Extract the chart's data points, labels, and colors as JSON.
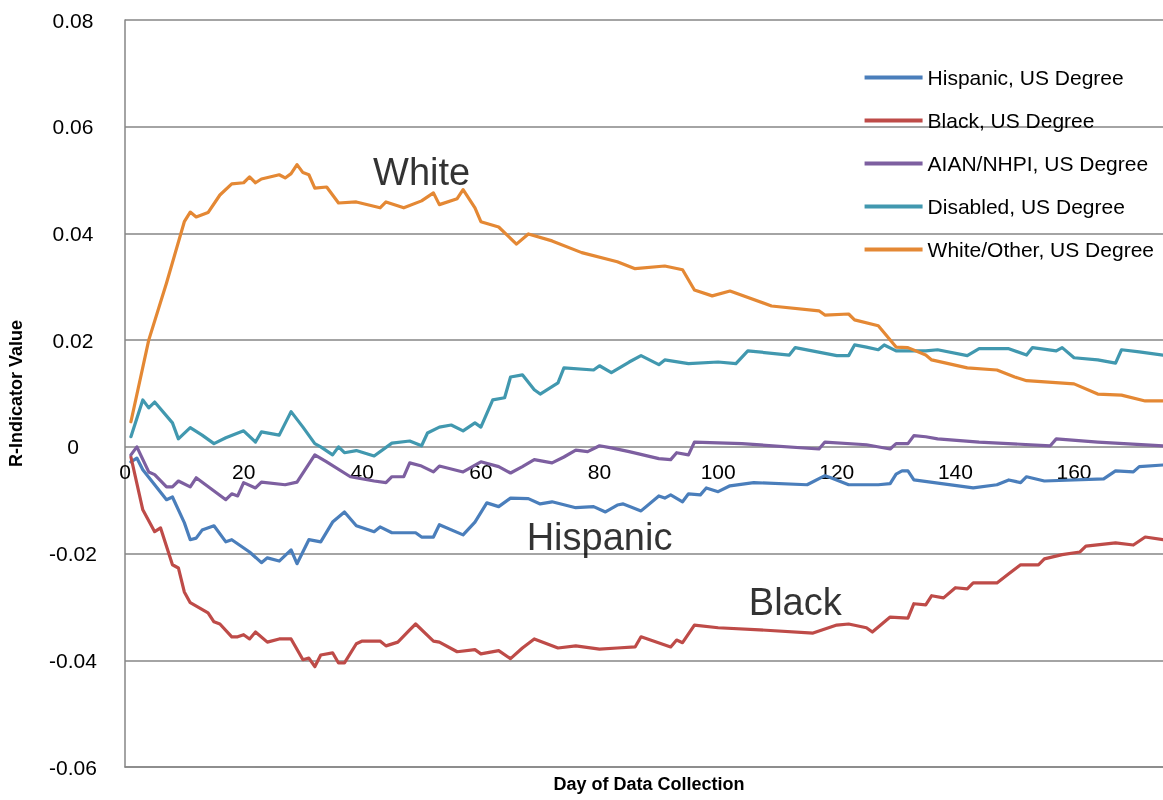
{
  "chart_data": {
    "type": "line",
    "xlabel": "Day of Data Collection",
    "ylabel": "R-Indicator Value",
    "xlim": [
      0,
      175
    ],
    "xticks": [
      0,
      20,
      40,
      60,
      80,
      100,
      120,
      140,
      160
    ],
    "ylim": [
      -0.06,
      0.08
    ],
    "yticks": [
      -0.06,
      -0.04,
      -0.02,
      0,
      0.02,
      0.04,
      0.06,
      0.08
    ],
    "grid": "y",
    "legend": "top right",
    "marker": "none",
    "line_style": "solid",
    "annotations": [
      {
        "text": "White",
        "x": 50,
        "y": 0.046
      },
      {
        "text": "Hispanic",
        "x": 80,
        "y": -0.0115
      },
      {
        "text": "Black",
        "x": 113,
        "y": -0.0345
      }
    ],
    "series": [
      {
        "name": "Hispanic, US Degree",
        "color": "#4a7ebb",
        "x": [
          1,
          2,
          3,
          7,
          8,
          10,
          11,
          12,
          13,
          15,
          17,
          18,
          21,
          23,
          24,
          26,
          28,
          29,
          31,
          33,
          35,
          37,
          39,
          42,
          43,
          45,
          49,
          50,
          52,
          53,
          57,
          59,
          61,
          63,
          65,
          68,
          70,
          72,
          76,
          79,
          81,
          83,
          84,
          87,
          90,
          91,
          92,
          94,
          95,
          97,
          98,
          100,
          102,
          106,
          115,
          118,
          119,
          122,
          127,
          129,
          130,
          131,
          132,
          133,
          143,
          147,
          149,
          151,
          152,
          155,
          165,
          167,
          170,
          171,
          175
        ],
        "values": [
          -0.0028,
          -0.0021,
          -0.0043,
          -0.0099,
          -0.0094,
          -0.0142,
          -0.0174,
          -0.0171,
          -0.0156,
          -0.0148,
          -0.0178,
          -0.0174,
          -0.0197,
          -0.0217,
          -0.0208,
          -0.0214,
          -0.0193,
          -0.0219,
          -0.0174,
          -0.0178,
          -0.0141,
          -0.0122,
          -0.0148,
          -0.0159,
          -0.015,
          -0.0161,
          -0.0161,
          -0.0169,
          -0.0169,
          -0.0146,
          -0.0165,
          -0.0141,
          -0.0105,
          -0.0112,
          -0.0096,
          -0.0097,
          -0.0107,
          -0.0103,
          -0.0114,
          -0.0112,
          -0.0122,
          -0.0109,
          -0.0107,
          -0.012,
          -0.0092,
          -0.0096,
          -0.009,
          -0.0103,
          -0.0088,
          -0.009,
          -0.0077,
          -0.0084,
          -0.0073,
          -0.0067,
          -0.0071,
          -0.0054,
          -0.0058,
          -0.0071,
          -0.0071,
          -0.0069,
          -0.0051,
          -0.0045,
          -0.0045,
          -0.0062,
          -0.0077,
          -0.0071,
          -0.0062,
          -0.0067,
          -0.0056,
          -0.0064,
          -0.006,
          -0.0045,
          -0.0047,
          -0.0037,
          -0.0034
        ]
      },
      {
        "name": "Black, US Degree",
        "color": "#be4b48",
        "x": [
          1,
          3,
          5,
          6,
          8,
          9,
          10,
          11,
          14,
          15,
          16,
          18,
          19,
          20,
          21,
          22,
          24,
          26,
          28,
          30,
          31,
          32,
          33,
          35,
          36,
          37,
          39,
          40,
          43,
          44,
          46,
          48,
          49,
          52,
          53,
          56,
          59,
          60,
          63,
          65,
          67,
          69,
          73,
          76,
          80,
          83,
          86,
          87,
          92,
          93,
          94,
          96,
          100,
          107,
          116,
          120,
          122,
          125,
          126,
          129,
          132,
          133,
          135,
          136,
          138,
          140,
          142,
          143,
          147,
          149,
          151,
          154,
          155,
          158,
          161,
          162,
          167,
          170,
          172,
          175
        ],
        "values": [
          -0.0019,
          -0.0118,
          -0.0159,
          -0.0152,
          -0.0221,
          -0.0227,
          -0.0272,
          -0.0292,
          -0.0311,
          -0.0328,
          -0.0332,
          -0.0356,
          -0.0356,
          -0.0352,
          -0.036,
          -0.0347,
          -0.0366,
          -0.036,
          -0.036,
          -0.0399,
          -0.0396,
          -0.0412,
          -0.039,
          -0.0386,
          -0.0405,
          -0.0405,
          -0.0369,
          -0.0364,
          -0.0364,
          -0.0373,
          -0.0366,
          -0.0343,
          -0.0332,
          -0.0364,
          -0.0366,
          -0.0384,
          -0.038,
          -0.0388,
          -0.0382,
          -0.0397,
          -0.0377,
          -0.036,
          -0.0377,
          -0.0373,
          -0.0379,
          -0.0377,
          -0.0375,
          -0.0356,
          -0.0375,
          -0.0362,
          -0.0367,
          -0.0334,
          -0.0339,
          -0.0343,
          -0.0349,
          -0.0334,
          -0.0332,
          -0.0339,
          -0.0347,
          -0.0319,
          -0.0321,
          -0.0294,
          -0.0296,
          -0.0279,
          -0.0283,
          -0.0264,
          -0.0266,
          -0.0255,
          -0.0255,
          -0.0238,
          -0.0221,
          -0.0221,
          -0.021,
          -0.0202,
          -0.0197,
          -0.0186,
          -0.018,
          -0.0184,
          -0.0169,
          -0.0174
        ]
      },
      {
        "name": "AIAN/NHPI, US Degree",
        "color": "#7d5fa0",
        "x": [
          1,
          2,
          4,
          5,
          7,
          8,
          9,
          11,
          12,
          17,
          18,
          19,
          20,
          22,
          23,
          27,
          29,
          32,
          34,
          38,
          42,
          44,
          45,
          47,
          48,
          50,
          52,
          53,
          57,
          60,
          63,
          65,
          67,
          69,
          72,
          74,
          76,
          78,
          80,
          82,
          85,
          90,
          92,
          93,
          95,
          96,
          104,
          117,
          118,
          125,
          129,
          130,
          132,
          133,
          135,
          137,
          144,
          156,
          157,
          164,
          175
        ],
        "values": [
          -0.0015,
          0,
          -0.0047,
          -0.0052,
          -0.0075,
          -0.0075,
          -0.0064,
          -0.0075,
          -0.0058,
          -0.0099,
          -0.0088,
          -0.0092,
          -0.0067,
          -0.0077,
          -0.0066,
          -0.0071,
          -0.0066,
          -0.0015,
          -0.0028,
          -0.0056,
          -0.0064,
          -0.0067,
          -0.0056,
          -0.0056,
          -0.003,
          -0.0036,
          -0.0047,
          -0.0036,
          -0.0047,
          -0.0028,
          -0.0037,
          -0.0049,
          -0.0037,
          -0.0024,
          -0.003,
          -0.0019,
          -0.0006,
          -0.0009,
          0.0002,
          -0.0002,
          -0.0009,
          -0.0022,
          -0.0024,
          -0.0011,
          -0.0015,
          0.0009,
          0.0006,
          -0.0004,
          0.0009,
          0.0004,
          -0.0004,
          0.0006,
          0.0006,
          0.0021,
          0.0019,
          0.0015,
          0.0009,
          0.0002,
          0.0015,
          0.0009,
          0.0002
        ]
      },
      {
        "name": "Disabled, US Degree",
        "color": "#4198af",
        "x": [
          1,
          3,
          4,
          5,
          8,
          9,
          11,
          13,
          15,
          17,
          20,
          22,
          23,
          26,
          28,
          30,
          32,
          33,
          35,
          36,
          37,
          39,
          42,
          45,
          48,
          50,
          51,
          53,
          55,
          57,
          59,
          60,
          62,
          64,
          65,
          67,
          69,
          70,
          73,
          74,
          79,
          80,
          82,
          85,
          87,
          90,
          91,
          95,
          100,
          103,
          105,
          112,
          113,
          120,
          122,
          123,
          125,
          127,
          128,
          130,
          135,
          137,
          142,
          144,
          149,
          152,
          153,
          157,
          158,
          160,
          164,
          167,
          168,
          171,
          175
        ],
        "values": [
          0.0019,
          0.0088,
          0.0073,
          0.0084,
          0.0045,
          0.0015,
          0.0036,
          0.0022,
          0.0006,
          0.0017,
          0.003,
          0.0009,
          0.0028,
          0.0022,
          0.0066,
          0.0037,
          0.0006,
          0,
          -0.0015,
          0,
          -0.0011,
          -0.0007,
          -0.0017,
          0.0007,
          0.0011,
          0.0002,
          0.0026,
          0.0037,
          0.0041,
          0.003,
          0.0045,
          0.0037,
          0.0088,
          0.0092,
          0.0131,
          0.0135,
          0.0107,
          0.0099,
          0.012,
          0.0148,
          0.0144,
          0.0152,
          0.0139,
          0.0159,
          0.0171,
          0.0154,
          0.0163,
          0.0156,
          0.0159,
          0.0156,
          0.018,
          0.0172,
          0.0186,
          0.0171,
          0.0171,
          0.0191,
          0.0187,
          0.0182,
          0.0191,
          0.018,
          0.018,
          0.0182,
          0.0171,
          0.0184,
          0.0184,
          0.0172,
          0.0186,
          0.018,
          0.0186,
          0.0167,
          0.0163,
          0.0157,
          0.0182,
          0.0178,
          0.0172
        ]
      },
      {
        "name": "White/Other, US Degree",
        "color": "#e48834",
        "x": [
          1,
          4,
          7,
          10,
          11,
          12,
          14,
          16,
          18,
          20,
          21,
          22,
          23,
          26,
          27,
          28,
          29,
          30,
          31,
          32,
          34,
          36,
          39,
          43,
          44,
          47,
          50,
          52,
          53,
          56,
          57,
          59,
          60,
          63,
          66,
          68,
          72,
          77,
          83,
          86,
          91,
          94,
          96,
          99,
          102,
          109,
          117,
          118,
          122,
          123,
          127,
          130,
          132,
          135,
          136,
          142,
          147,
          150,
          152,
          160,
          164,
          168,
          172,
          175
        ],
        "values": [
          0.0047,
          0.02,
          0.0307,
          0.0422,
          0.044,
          0.0431,
          0.0439,
          0.0472,
          0.0493,
          0.0495,
          0.0506,
          0.0495,
          0.0502,
          0.051,
          0.0504,
          0.0512,
          0.0529,
          0.0514,
          0.051,
          0.0485,
          0.0487,
          0.0457,
          0.0459,
          0.0448,
          0.0459,
          0.0448,
          0.0461,
          0.0476,
          0.0454,
          0.0465,
          0.0482,
          0.0448,
          0.0422,
          0.0412,
          0.038,
          0.0399,
          0.0386,
          0.0364,
          0.0347,
          0.0334,
          0.0339,
          0.0332,
          0.0294,
          0.0283,
          0.0292,
          0.0264,
          0.0255,
          0.0247,
          0.0249,
          0.0238,
          0.0227,
          0.0187,
          0.0186,
          0.0172,
          0.0163,
          0.0148,
          0.0144,
          0.0131,
          0.0124,
          0.0118,
          0.0099,
          0.0097,
          0.0086,
          0.0086
        ]
      }
    ]
  }
}
